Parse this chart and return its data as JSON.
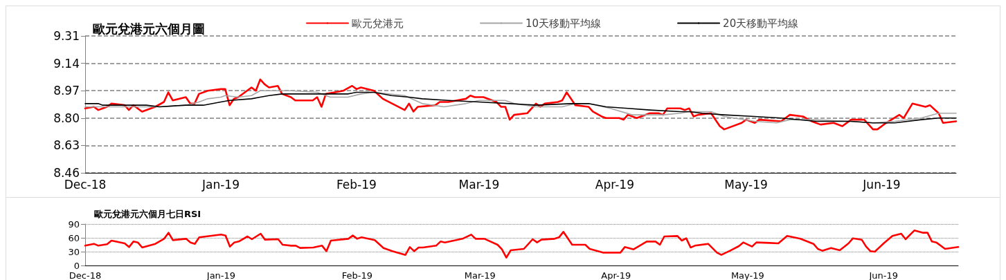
{
  "chart_data": [
    {
      "type": "line",
      "title": "歐元兌港元六個月圖",
      "legend": "top",
      "grid": "y",
      "marker": "none",
      "xlim": [
        "2018-12-01",
        "2019-06-18"
      ],
      "xticks": [
        {
          "value": "2018-12-01",
          "label": "Dec-18"
        },
        {
          "value": "2019-01-01",
          "label": "Jan-19"
        },
        {
          "value": "2019-02-01",
          "label": "Feb-19"
        },
        {
          "value": "2019-03-01",
          "label": "Mar-19"
        },
        {
          "value": "2019-04-01",
          "label": "Apr-19"
        },
        {
          "value": "2019-05-01",
          "label": "May-19"
        },
        {
          "value": "2019-06-01",
          "label": "Jun-19"
        }
      ],
      "ylim": [
        8.46,
        9.31
      ],
      "yticks": [
        8.46,
        8.63,
        {
          "value": 8.8,
          "label": "8.80"
        },
        8.97,
        9.14,
        9.31
      ],
      "series": [
        {
          "name": "歐元兌港元",
          "color": "#ff0000",
          "x": [
            "2018-12-01",
            "2018-12-03",
            "2018-12-04",
            "2018-12-06",
            "2018-12-07",
            "2018-12-10",
            "2018-12-11",
            "2018-12-12",
            "2018-12-14",
            "2018-12-17",
            "2018-12-19",
            "2018-12-20",
            "2018-12-21",
            "2018-12-24",
            "2018-12-25",
            "2018-12-26",
            "2018-12-27",
            "2018-12-29",
            "2019-01-01",
            "2019-01-02",
            "2019-01-03",
            "2019-01-04",
            "2019-01-05",
            "2019-01-08",
            "2019-01-09",
            "2019-01-10",
            "2019-01-11",
            "2019-01-12",
            "2019-01-14",
            "2019-01-15",
            "2019-01-17",
            "2019-01-18",
            "2019-01-22",
            "2019-01-23",
            "2019-01-24",
            "2019-01-25",
            "2019-01-29",
            "2019-01-31",
            "2019-02-01",
            "2019-02-02",
            "2019-02-05",
            "2019-02-07",
            "2019-02-12",
            "2019-02-13",
            "2019-02-14",
            "2019-02-15",
            "2019-02-19",
            "2019-02-20",
            "2019-02-22",
            "2019-02-26",
            "2019-02-27",
            "2019-02-28",
            "2019-03-02",
            "2019-03-05",
            "2019-03-06",
            "2019-03-07",
            "2019-03-08",
            "2019-03-09",
            "2019-03-12",
            "2019-03-14",
            "2019-03-15",
            "2019-03-16",
            "2019-03-19",
            "2019-03-20",
            "2019-03-21",
            "2019-03-22",
            "2019-03-23",
            "2019-03-26",
            "2019-03-27",
            "2019-03-29",
            "2019-03-30",
            "2019-04-02",
            "2019-04-03",
            "2019-04-04",
            "2019-04-06",
            "2019-04-07",
            "2019-04-09",
            "2019-04-10",
            "2019-04-11",
            "2019-04-12",
            "2019-04-13",
            "2019-04-16",
            "2019-04-17",
            "2019-04-18",
            "2019-04-19",
            "2019-04-20",
            "2019-04-23",
            "2019-04-25",
            "2019-04-26",
            "2019-04-30",
            "2019-05-01",
            "2019-05-03",
            "2019-05-04",
            "2019-05-09",
            "2019-05-11",
            "2019-05-14",
            "2019-05-16",
            "2019-05-18",
            "2019-05-21",
            "2019-05-23",
            "2019-05-25",
            "2019-05-28",
            "2019-05-30",
            "2019-05-31",
            "2019-06-02",
            "2019-06-05",
            "2019-06-06",
            "2019-06-08",
            "2019-06-11",
            "2019-06-12",
            "2019-06-14",
            "2019-06-15",
            "2019-06-18"
          ],
          "values": [
            8.86,
            8.87,
            8.85,
            8.87,
            8.89,
            8.88,
            8.85,
            8.88,
            8.84,
            8.87,
            8.9,
            8.96,
            8.91,
            8.93,
            8.89,
            8.89,
            8.95,
            8.97,
            8.98,
            8.98,
            8.88,
            8.92,
            8.93,
            8.99,
            8.97,
            9.04,
            9.01,
            8.99,
            9.0,
            8.95,
            8.93,
            8.91,
            8.91,
            8.93,
            8.87,
            8.95,
            8.97,
            9.0,
            8.98,
            8.99,
            8.97,
            8.92,
            8.85,
            8.89,
            8.84,
            8.87,
            8.88,
            8.9,
            8.9,
            8.92,
            8.94,
            8.93,
            8.93,
            8.9,
            8.87,
            8.87,
            8.79,
            8.82,
            8.83,
            8.89,
            8.87,
            8.89,
            8.9,
            8.91,
            8.96,
            8.92,
            8.88,
            8.87,
            8.84,
            8.81,
            8.8,
            8.8,
            8.79,
            8.82,
            8.8,
            8.81,
            8.83,
            8.83,
            8.83,
            8.82,
            8.86,
            8.86,
            8.85,
            8.86,
            8.81,
            8.82,
            8.83,
            8.75,
            8.73,
            8.77,
            8.79,
            8.77,
            8.79,
            8.78,
            8.82,
            8.81,
            8.78,
            8.76,
            8.77,
            8.75,
            8.79,
            8.79,
            8.73,
            8.73,
            8.77,
            8.82,
            8.8,
            8.89,
            8.87,
            8.88,
            8.83,
            8.77,
            8.78
          ]
        },
        {
          "name": "10天移動平均線",
          "color": "#a6a6a6",
          "x": [
            "2018-12-01",
            "2018-12-05",
            "2018-12-13",
            "2018-12-18",
            "2018-12-24",
            "2018-12-27",
            "2018-12-29",
            "2019-01-01",
            "2019-01-02",
            "2019-01-05",
            "2019-01-08",
            "2019-01-10",
            "2019-01-14",
            "2019-01-17",
            "2019-01-23",
            "2019-01-26",
            "2019-01-30",
            "2019-02-02",
            "2019-02-05",
            "2019-02-12",
            "2019-02-16",
            "2019-02-21",
            "2019-02-26",
            "2019-03-01",
            "2019-03-07",
            "2019-03-09",
            "2019-03-14",
            "2019-03-20",
            "2019-03-23",
            "2019-03-26",
            "2019-03-31",
            "2019-04-05",
            "2019-04-12",
            "2019-04-16",
            "2019-04-18",
            "2019-04-23",
            "2019-04-26",
            "2019-05-03",
            "2019-05-08",
            "2019-05-11",
            "2019-05-16",
            "2019-05-25",
            "2019-05-30",
            "2019-06-04",
            "2019-06-10",
            "2019-06-14",
            "2019-06-18"
          ],
          "values": [
            8.87,
            8.87,
            8.87,
            8.87,
            8.88,
            8.9,
            8.92,
            8.93,
            8.94,
            8.93,
            8.94,
            8.97,
            8.97,
            8.97,
            8.96,
            8.93,
            8.93,
            8.95,
            8.96,
            8.94,
            8.89,
            8.87,
            8.89,
            8.91,
            8.91,
            8.89,
            8.87,
            8.87,
            8.89,
            8.89,
            8.86,
            8.82,
            8.82,
            8.83,
            8.84,
            8.84,
            8.81,
            8.78,
            8.77,
            8.79,
            8.79,
            8.78,
            8.77,
            8.78,
            8.8,
            8.83,
            8.83
          ]
        },
        {
          "name": "20天移動平均線",
          "color": "#000000",
          "x": [
            "2018-12-01",
            "2018-12-04",
            "2018-12-05",
            "2018-12-13",
            "2018-12-15",
            "2018-12-18",
            "2018-12-24",
            "2018-12-28",
            "2019-01-01",
            "2019-01-03",
            "2019-01-08",
            "2019-01-10",
            "2019-01-12",
            "2019-01-15",
            "2019-01-30",
            "2019-02-01",
            "2019-02-05",
            "2019-02-09",
            "2019-02-13",
            "2019-02-16",
            "2019-02-22",
            "2019-03-01",
            "2019-03-08",
            "2019-03-14",
            "2019-03-22",
            "2019-03-26",
            "2019-03-30",
            "2019-04-04",
            "2019-04-09",
            "2019-04-16",
            "2019-04-18",
            "2019-04-21",
            "2019-04-26",
            "2019-05-03",
            "2019-05-09",
            "2019-05-17",
            "2019-05-25",
            "2019-05-30",
            "2019-06-04",
            "2019-06-10",
            "2019-06-14",
            "2019-06-18"
          ],
          "values": [
            8.89,
            8.89,
            8.88,
            8.88,
            8.88,
            8.87,
            8.88,
            8.88,
            8.9,
            8.91,
            8.92,
            8.93,
            8.94,
            8.95,
            8.95,
            8.96,
            8.96,
            8.94,
            8.93,
            8.92,
            8.91,
            8.9,
            8.89,
            8.88,
            8.89,
            8.89,
            8.87,
            8.86,
            8.85,
            8.84,
            8.84,
            8.83,
            8.82,
            8.81,
            8.8,
            8.78,
            8.78,
            8.77,
            8.77,
            8.79,
            8.8,
            8.8
          ]
        }
      ]
    },
    {
      "type": "line",
      "title": "歐元兌港元六個月七日RSI",
      "grid": "y",
      "marker": "none",
      "xlim": [
        "2018-12-01",
        "2019-06-18"
      ],
      "xticks": [
        {
          "value": "2018-12-01",
          "label": "Dec-18"
        },
        {
          "value": "2019-01-01",
          "label": "Jan-19"
        },
        {
          "value": "2019-02-01",
          "label": "Feb-19"
        },
        {
          "value": "2019-03-01",
          "label": "Mar-19"
        },
        {
          "value": "2019-04-01",
          "label": "Apr-19"
        },
        {
          "value": "2019-05-01",
          "label": "May-19"
        },
        {
          "value": "2019-06-01",
          "label": "Jun-19"
        }
      ],
      "ylim": [
        0,
        90
      ],
      "yticks": [
        0,
        30,
        60,
        90
      ],
      "series": [
        {
          "color": "#ff0000",
          "x": [
            "2018-12-01",
            "2018-12-03",
            "2018-12-04",
            "2018-12-06",
            "2018-12-07",
            "2018-12-10",
            "2018-12-11",
            "2018-12-12",
            "2018-12-13",
            "2018-12-14",
            "2018-12-17",
            "2018-12-19",
            "2018-12-20",
            "2018-12-21",
            "2018-12-24",
            "2018-12-25",
            "2018-12-26",
            "2018-12-27",
            "2019-01-01",
            "2019-01-02",
            "2019-01-03",
            "2019-01-04",
            "2019-01-05",
            "2019-01-07",
            "2019-01-08",
            "2019-01-10",
            "2019-01-11",
            "2019-01-14",
            "2019-01-15",
            "2019-01-17",
            "2019-01-18",
            "2019-01-19",
            "2019-01-22",
            "2019-01-24",
            "2019-01-25",
            "2019-01-26",
            "2019-01-30",
            "2019-01-31",
            "2019-02-01",
            "2019-02-02",
            "2019-02-05",
            "2019-02-07",
            "2019-02-09",
            "2019-02-12",
            "2019-02-13",
            "2019-02-14",
            "2019-02-15",
            "2019-02-16",
            "2019-02-19",
            "2019-02-20",
            "2019-02-21",
            "2019-02-25",
            "2019-02-27",
            "2019-02-28",
            "2019-03-02",
            "2019-03-05",
            "2019-03-06",
            "2019-03-07",
            "2019-03-08",
            "2019-03-11",
            "2019-03-13",
            "2019-03-14",
            "2019-03-15",
            "2019-03-18",
            "2019-03-19",
            "2019-03-20",
            "2019-03-22",
            "2019-03-25",
            "2019-03-26",
            "2019-03-29",
            "2019-04-02",
            "2019-04-03",
            "2019-04-05",
            "2019-04-08",
            "2019-04-10",
            "2019-04-11",
            "2019-04-12",
            "2019-04-15",
            "2019-04-16",
            "2019-04-17",
            "2019-04-18",
            "2019-04-19",
            "2019-04-22",
            "2019-04-24",
            "2019-04-25",
            "2019-04-27",
            "2019-04-29",
            "2019-04-30",
            "2019-05-02",
            "2019-05-03",
            "2019-05-06",
            "2019-05-08",
            "2019-05-10",
            "2019-05-13",
            "2019-05-16",
            "2019-05-17",
            "2019-05-18",
            "2019-05-20",
            "2019-05-22",
            "2019-05-24",
            "2019-05-25",
            "2019-05-27",
            "2019-05-28",
            "2019-05-29",
            "2019-05-30",
            "2019-06-01",
            "2019-06-03",
            "2019-06-05",
            "2019-06-06",
            "2019-06-08",
            "2019-06-10",
            "2019-06-11",
            "2019-06-12",
            "2019-06-13",
            "2019-06-15",
            "2019-06-18"
          ],
          "values": [
            43,
            47,
            43,
            46,
            54,
            48,
            40,
            52,
            50,
            39,
            47,
            58,
            71,
            55,
            58,
            50,
            47,
            61,
            67,
            65,
            41,
            50,
            52,
            63,
            57,
            69,
            56,
            57,
            45,
            43,
            43,
            38,
            39,
            43,
            31,
            54,
            58,
            65,
            58,
            61,
            55,
            38,
            31,
            23,
            40,
            31,
            39,
            39,
            43,
            52,
            50,
            58,
            67,
            58,
            58,
            45,
            35,
            17,
            33,
            36,
            57,
            50,
            56,
            58,
            61,
            73,
            45,
            45,
            36,
            28,
            28,
            40,
            35,
            52,
            52,
            45,
            63,
            64,
            54,
            59,
            39,
            43,
            47,
            28,
            23,
            32,
            42,
            50,
            41,
            50,
            49,
            48,
            64,
            58,
            47,
            36,
            32,
            38,
            33,
            48,
            59,
            56,
            41,
            31,
            30,
            48,
            64,
            69,
            57,
            76,
            71,
            71,
            52,
            50,
            36,
            40
          ]
        }
      ]
    }
  ]
}
